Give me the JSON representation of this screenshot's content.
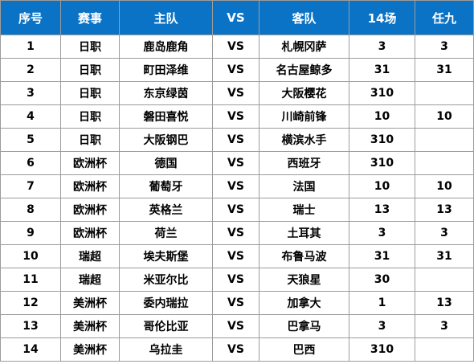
{
  "table": {
    "headers": {
      "index": "序号",
      "event": "赛事",
      "home": "主队",
      "vs": "VS",
      "away": "客队",
      "r14": "14场",
      "r9": "任九"
    },
    "rows": [
      {
        "index": "1",
        "event": "日职",
        "home": "鹿岛鹿角",
        "vs": "VS",
        "away": "札幌冈萨",
        "r14": "3",
        "r9": "3"
      },
      {
        "index": "2",
        "event": "日职",
        "home": "町田泽维",
        "vs": "VS",
        "away": "名古屋鲸多",
        "r14": "31",
        "r9": "31"
      },
      {
        "index": "3",
        "event": "日职",
        "home": "东京绿茵",
        "vs": "VS",
        "away": "大阪樱花",
        "r14": "310",
        "r9": ""
      },
      {
        "index": "4",
        "event": "日职",
        "home": "磐田喜悦",
        "vs": "VS",
        "away": "川崎前锋",
        "r14": "10",
        "r9": "10"
      },
      {
        "index": "5",
        "event": "日职",
        "home": "大阪钢巴",
        "vs": "VS",
        "away": "横滨水手",
        "r14": "310",
        "r9": ""
      },
      {
        "index": "6",
        "event": "欧洲杯",
        "home": "德国",
        "vs": "VS",
        "away": "西班牙",
        "r14": "310",
        "r9": ""
      },
      {
        "index": "7",
        "event": "欧洲杯",
        "home": "葡萄牙",
        "vs": "VS",
        "away": "法国",
        "r14": "10",
        "r9": "10"
      },
      {
        "index": "8",
        "event": "欧洲杯",
        "home": "英格兰",
        "vs": "VS",
        "away": "瑞士",
        "r14": "13",
        "r9": "13"
      },
      {
        "index": "9",
        "event": "欧洲杯",
        "home": "荷兰",
        "vs": "VS",
        "away": "土耳其",
        "r14": "3",
        "r9": "3"
      },
      {
        "index": "10",
        "event": "瑞超",
        "home": "埃夫斯堡",
        "vs": "VS",
        "away": "布鲁马波",
        "r14": "31",
        "r9": "31"
      },
      {
        "index": "11",
        "event": "瑞超",
        "home": "米亚尔比",
        "vs": "VS",
        "away": "天狼星",
        "r14": "30",
        "r9": ""
      },
      {
        "index": "12",
        "event": "美洲杯",
        "home": "委内瑞拉",
        "vs": "VS",
        "away": "加拿大",
        "r14": "1",
        "r9": "13"
      },
      {
        "index": "13",
        "event": "美洲杯",
        "home": "哥伦比亚",
        "vs": "VS",
        "away": "巴拿马",
        "r14": "3",
        "r9": "3"
      },
      {
        "index": "14",
        "event": "美洲杯",
        "home": "乌拉圭",
        "vs": "VS",
        "away": "巴西",
        "r14": "310",
        "r9": ""
      }
    ]
  },
  "colors": {
    "header_bg": "#0b73c6",
    "header_text": "#ffffff",
    "border": "#9c9c9c",
    "body_text": "#000000"
  }
}
